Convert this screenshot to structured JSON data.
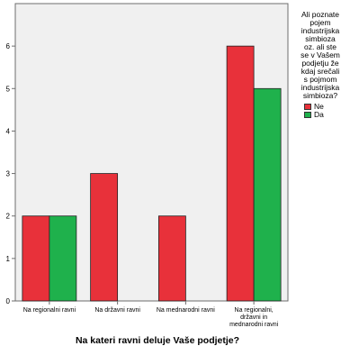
{
  "chart_data": {
    "type": "bar",
    "categories": [
      "Na regionalni ravni",
      "Na državni ravni",
      "Na mednarodni ravni",
      "Na regionalni, državni in mednarodni ravni"
    ],
    "category_label_lines": [
      [
        "Na regionalni ravni"
      ],
      [
        "Na državni ravni"
      ],
      [
        "Na mednarodni ravni"
      ],
      [
        "Na regionalni,",
        "državni in",
        "mednarodni ravni"
      ]
    ],
    "series": [
      {
        "name": "Ne",
        "color": "#e8313a",
        "values": [
          2,
          3,
          2,
          6
        ]
      },
      {
        "name": "Da",
        "color": "#1fb14c",
        "values": [
          2,
          0,
          0,
          5
        ]
      }
    ],
    "yticks": [
      0,
      1,
      2,
      3,
      4,
      5,
      6
    ],
    "ylim": [
      0,
      7
    ],
    "xlabel": "Na kateri ravni deluje Vaše podjetje?",
    "ylabel": "",
    "legend": {
      "title": "Ali poznate pojem industrijska simbioza oz. ali ste se v Vašem podjetju že kdaj srečali s pojmom industrijska simbioza?",
      "title_lines": [
        "Ali poznate",
        "pojem",
        "industrijska",
        "simbioza",
        "oz. ali ste",
        "se v Vašem",
        "podjetju že",
        "kdaj srečali",
        "s pojmom",
        "industrijska",
        "simbioza?"
      ],
      "position": "right"
    },
    "plot_background": "#f0f0f0",
    "grid": false
  }
}
